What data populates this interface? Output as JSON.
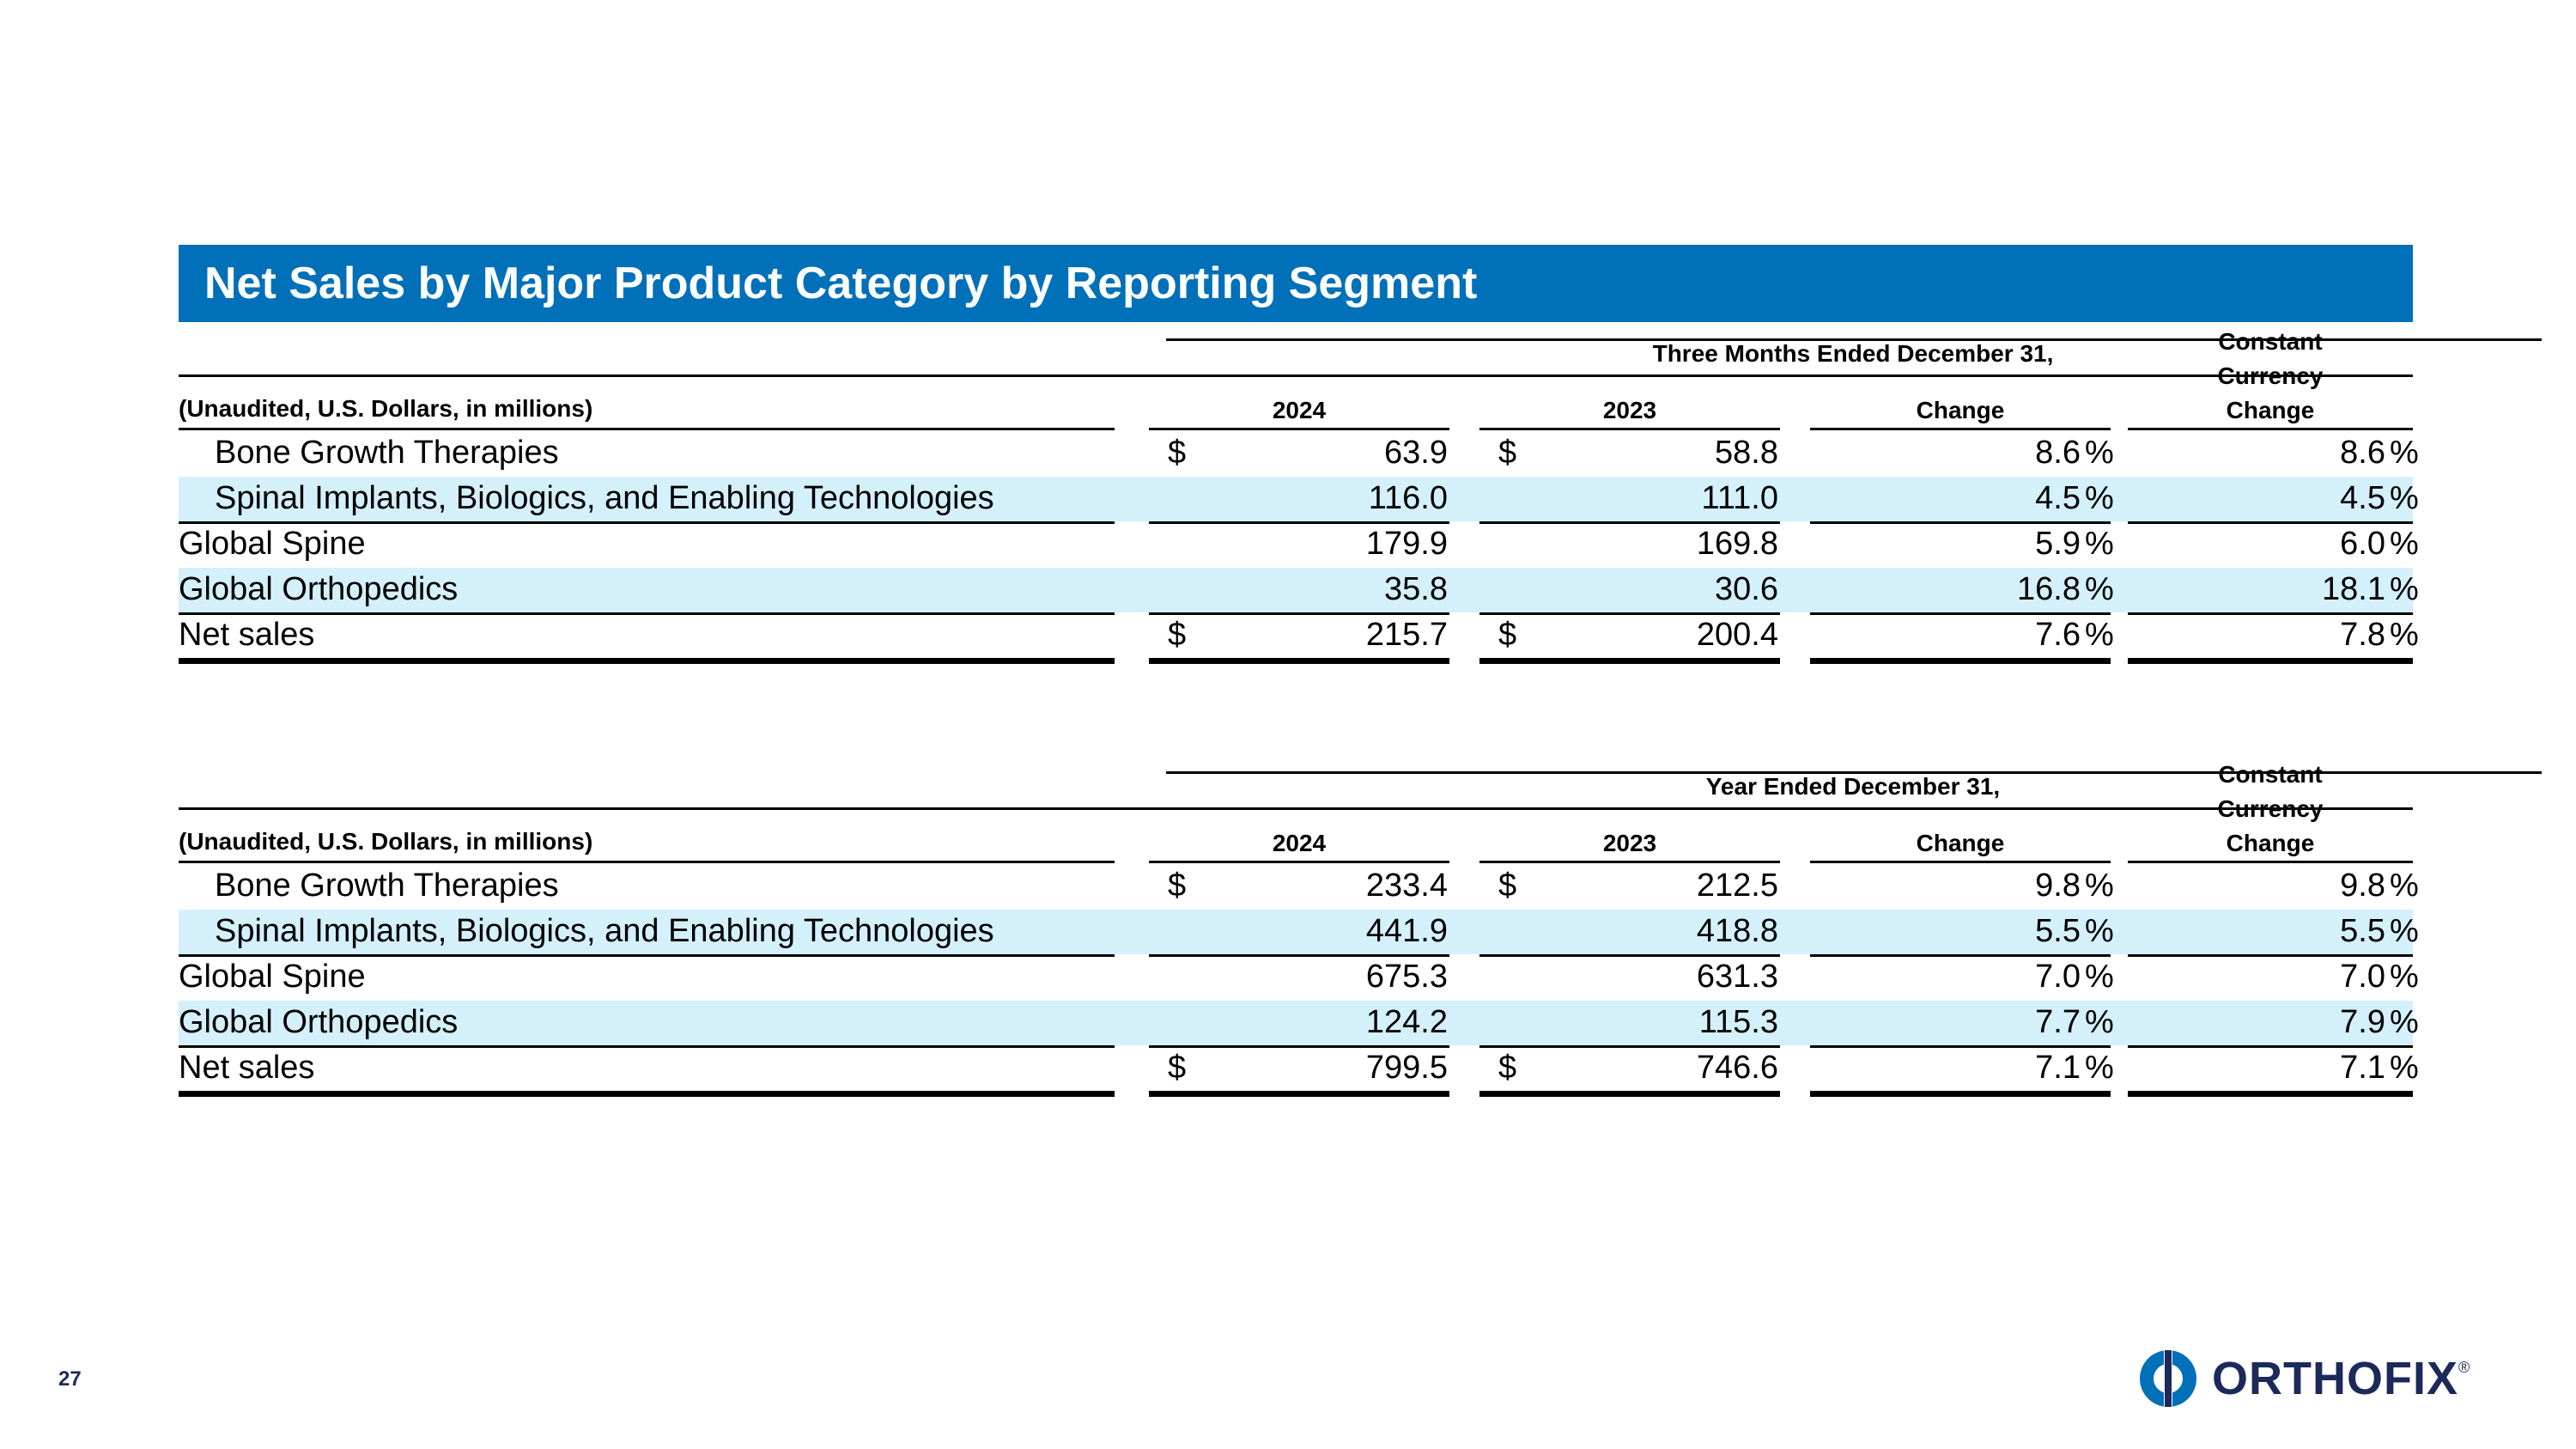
{
  "title": "Net Sales by Major Product Category by Reporting Segment",
  "accent_color": "#0070b8",
  "row_band_color": "#d4f0fb",
  "page_number": "27",
  "logo": {
    "text": "ORTHOFIX",
    "mark": "®"
  },
  "tables": [
    {
      "period": "Three Months Ended December 31,",
      "units": "(Unaudited, U.S. Dollars, in millions)",
      "col_2024": "2024",
      "col_2023": "2023",
      "col_change": "Change",
      "col_cc": [
        "Constant",
        "Currency",
        "Change"
      ],
      "currency": "$",
      "pct": "%",
      "rows": [
        {
          "label": "Bone Growth Therapies",
          "v2024": "63.9",
          "v2023": "58.8",
          "change": "8.6",
          "cc": "8.6"
        },
        {
          "label": "Spinal Implants, Biologics, and Enabling Technologies",
          "v2024": "116.0",
          "v2023": "111.0",
          "change": "4.5",
          "cc": "4.5"
        },
        {
          "label": "Global Spine",
          "v2024": "179.9",
          "v2023": "169.8",
          "change": "5.9",
          "cc": "6.0"
        },
        {
          "label": "Global Orthopedics",
          "v2024": "35.8",
          "v2023": "30.6",
          "change": "16.8",
          "cc": "18.1"
        },
        {
          "label": "Net sales",
          "v2024": "215.7",
          "v2023": "200.4",
          "change": "7.6",
          "cc": "7.8"
        }
      ]
    },
    {
      "period": "Year Ended December 31,",
      "units": "(Unaudited, U.S. Dollars, in millions)",
      "col_2024": "2024",
      "col_2023": "2023",
      "col_change": "Change",
      "col_cc": [
        "Constant",
        "Currency",
        "Change"
      ],
      "currency": "$",
      "pct": "%",
      "rows": [
        {
          "label": "Bone Growth Therapies",
          "v2024": "233.4",
          "v2023": "212.5",
          "change": "9.8",
          "cc": "9.8"
        },
        {
          "label": "Spinal Implants, Biologics, and Enabling Technologies",
          "v2024": "441.9",
          "v2023": "418.8",
          "change": "5.5",
          "cc": "5.5"
        },
        {
          "label": "Global Spine",
          "v2024": "675.3",
          "v2023": "631.3",
          "change": "7.0",
          "cc": "7.0"
        },
        {
          "label": "Global Orthopedics",
          "v2024": "124.2",
          "v2023": "115.3",
          "change": "7.7",
          "cc": "7.9"
        },
        {
          "label": "Net sales",
          "v2024": "799.5",
          "v2023": "746.6",
          "change": "7.1",
          "cc": "7.1"
        }
      ]
    }
  ]
}
